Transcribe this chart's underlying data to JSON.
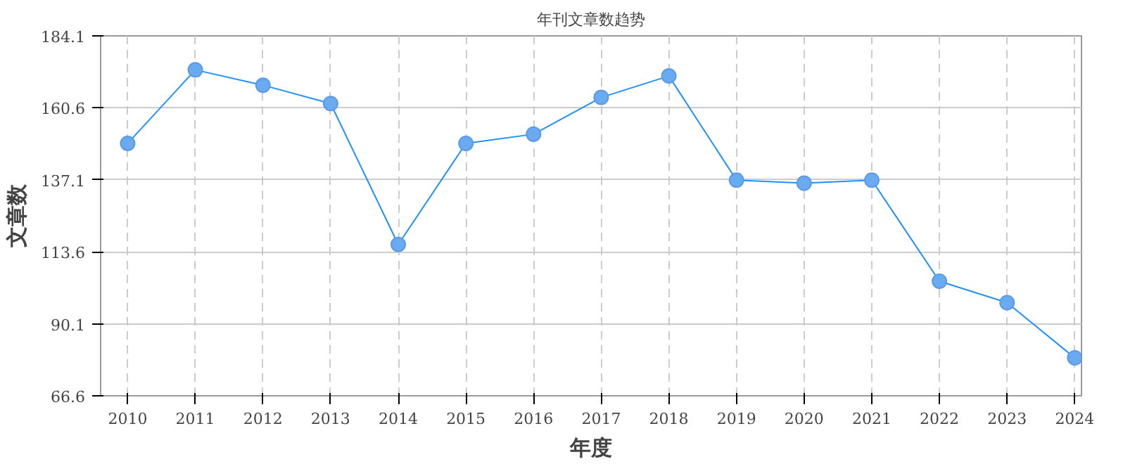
{
  "chart_data": {
    "type": "line",
    "title": "年刊文章数趋势",
    "xlabel": "年度",
    "ylabel": "文章数",
    "categories": [
      "2010",
      "2011",
      "2012",
      "2013",
      "2014",
      "2015",
      "2016",
      "2017",
      "2018",
      "2019",
      "2020",
      "2021",
      "2022",
      "2023",
      "2024"
    ],
    "series": [
      {
        "color": "#1e90ff",
        "values": [
          149,
          173,
          168,
          162,
          116,
          149,
          152,
          164,
          171,
          137,
          136,
          137,
          104,
          97,
          79
        ]
      }
    ],
    "ylim": [
      66.6,
      184.1
    ],
    "yticks": [
      66.6,
      90.1,
      113.6,
      137.1,
      160.6,
      184.1
    ],
    "grid": true,
    "marker": "circle",
    "line_style": "solid"
  }
}
